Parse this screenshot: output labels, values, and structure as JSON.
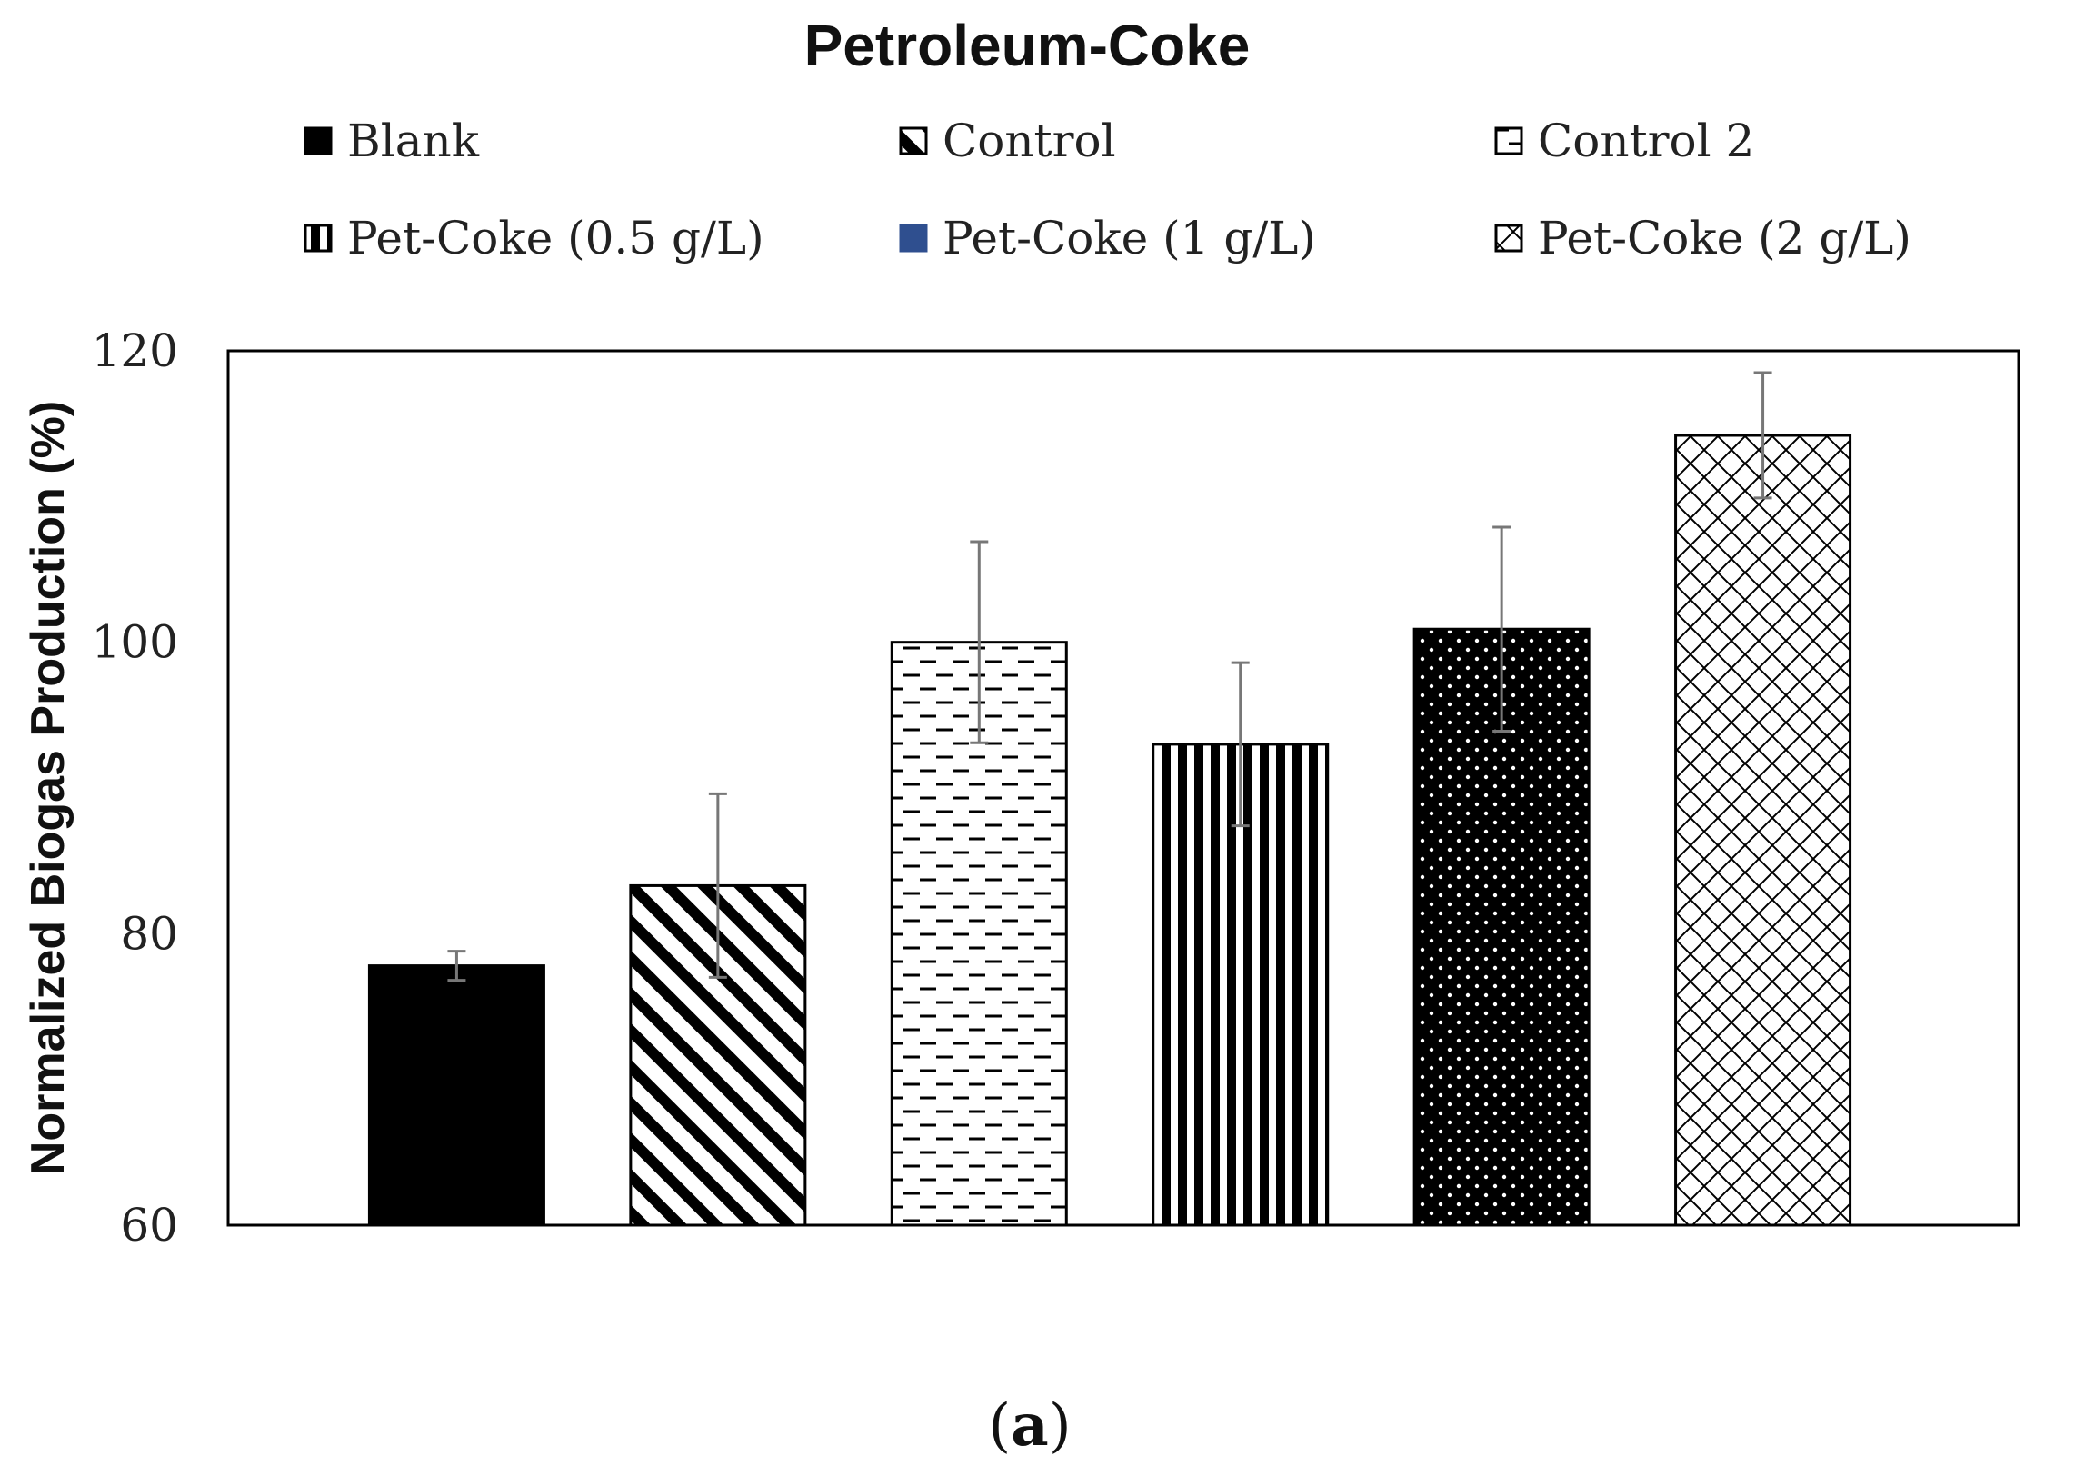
{
  "chart_data": {
    "type": "bar",
    "title": "Petroleum-Coke",
    "xlabel": "",
    "ylabel": "Normalized Biogas Production (%)",
    "ylim": [
      60,
      120
    ],
    "yticks": [
      60,
      80,
      100,
      120
    ],
    "grid": false,
    "legend_position": "top",
    "series": [
      {
        "name": "Blank",
        "value": 77.8,
        "error": 1.0,
        "pattern": "solid",
        "legend_color": "#000000"
      },
      {
        "name": "Control",
        "value": 83.3,
        "error": 6.3,
        "pattern": "diagonal",
        "legend_color": "#000000"
      },
      {
        "name": "Control 2",
        "value": 100.0,
        "error": 6.9,
        "pattern": "dashes",
        "legend_color": "#000000"
      },
      {
        "name": "Pet-Coke (0.5 g/L)",
        "value": 93.0,
        "error": 5.6,
        "pattern": "vertical",
        "legend_color": "#000000"
      },
      {
        "name": "Pet-Coke (1 g/L)",
        "value": 100.9,
        "error": 7.0,
        "pattern": "dots",
        "legend_color": "#2f4f8f"
      },
      {
        "name": "Pet-Coke (2 g/L)",
        "value": 114.2,
        "error": 4.3,
        "pattern": "crosshatch",
        "legend_color": "#000000"
      }
    ]
  },
  "caption": {
    "open": "(",
    "letter": "a",
    "close": ")"
  }
}
